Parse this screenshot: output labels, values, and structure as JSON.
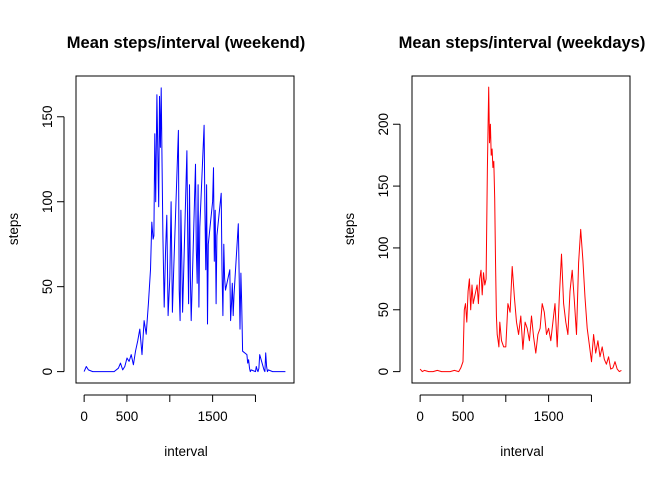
{
  "chart_data": [
    {
      "type": "line",
      "title": "Mean steps/interval (weekend)",
      "xlabel": "interval",
      "ylabel": "steps",
      "color": "#0000ff",
      "xlim": [
        -95,
        2450
      ],
      "ylim": [
        -6.7,
        174
      ],
      "x_ticks": [
        0,
        500,
        1000,
        1500,
        2000
      ],
      "x_tick_labels": [
        "0",
        "500",
        "",
        "1500",
        ""
      ],
      "y_ticks": [
        0,
        50,
        100,
        150
      ],
      "y_tick_labels": [
        "0",
        "50",
        "100",
        "150"
      ],
      "grid": false,
      "series": [
        {
          "x": [
            0,
            25,
            50,
            100,
            150,
            200,
            250,
            300,
            350,
            400,
            425,
            450,
            475,
            500,
            525,
            550,
            575,
            600,
            625,
            650,
            675,
            700,
            725,
            750,
            775,
            790,
            805,
            815,
            825,
            835,
            850,
            860,
            870,
            880,
            890,
            900,
            910,
            920,
            935,
            950,
            965,
            980,
            1000,
            1015,
            1030,
            1045,
            1100,
            1110,
            1120,
            1130,
            1140,
            1150,
            1200,
            1210,
            1220,
            1230,
            1240,
            1250,
            1300,
            1310,
            1320,
            1330,
            1340,
            1350,
            1400,
            1410,
            1420,
            1430,
            1440,
            1450,
            1500,
            1510,
            1520,
            1530,
            1540,
            1550,
            1600,
            1610,
            1620,
            1630,
            1640,
            1650,
            1700,
            1710,
            1720,
            1730,
            1740,
            1750,
            1800,
            1810,
            1820,
            1830,
            1840,
            1850,
            1900,
            1910,
            1920,
            1930,
            1940,
            1950,
            2000,
            2010,
            2020,
            2030,
            2040,
            2050,
            2100,
            2110,
            2120,
            2130,
            2140,
            2150,
            2200,
            2225,
            2250,
            2275,
            2300,
            2325,
            2350
          ],
          "y": [
            0,
            3,
            1,
            0,
            0,
            0,
            0,
            0,
            0,
            2,
            5,
            1,
            3,
            8,
            6,
            10,
            4,
            12,
            18,
            25,
            10,
            30,
            22,
            40,
            60,
            88,
            78,
            80,
            140,
            100,
            163,
            130,
            97,
            162,
            132,
            167,
            120,
            80,
            38,
            70,
            92,
            33,
            55,
            100,
            35,
            60,
            142,
            48,
            30,
            95,
            65,
            35,
            130,
            75,
            40,
            110,
            55,
            30,
            122,
            72,
            52,
            110,
            38,
            85,
            145,
            95,
            60,
            110,
            28,
            75,
            100,
            120,
            65,
            95,
            40,
            80,
            105,
            60,
            33,
            75,
            55,
            48,
            60,
            30,
            40,
            52,
            33,
            45,
            87,
            55,
            25,
            58,
            40,
            12,
            10,
            5,
            7,
            2,
            0,
            1,
            0,
            3,
            1,
            0,
            2,
            10,
            1,
            0,
            11,
            3,
            0,
            1,
            0,
            0,
            0,
            0,
            0,
            0,
            0
          ]
        }
      ]
    },
    {
      "type": "line",
      "title": "Mean steps/interval (weekdays)",
      "xlabel": "interval",
      "ylabel": "steps",
      "color": "#ff0000",
      "xlim": [
        -95,
        2450
      ],
      "ylim": [
        -9.2,
        239
      ],
      "x_ticks": [
        0,
        500,
        1000,
        1500,
        2000
      ],
      "x_tick_labels": [
        "0",
        "500",
        "",
        "1500",
        ""
      ],
      "y_ticks": [
        0,
        50,
        100,
        150,
        200
      ],
      "y_tick_labels": [
        "0",
        "50",
        "100",
        "150",
        "200"
      ],
      "grid": false,
      "series": [
        {
          "x": [
            0,
            25,
            50,
            100,
            150,
            200,
            250,
            300,
            350,
            400,
            450,
            475,
            500,
            515,
            530,
            545,
            560,
            575,
            590,
            605,
            620,
            635,
            650,
            665,
            680,
            695,
            710,
            725,
            740,
            755,
            770,
            785,
            800,
            810,
            820,
            830,
            840,
            850,
            860,
            870,
            880,
            890,
            900,
            910,
            920,
            930,
            950,
            975,
            1000,
            1025,
            1050,
            1075,
            1100,
            1125,
            1150,
            1175,
            1200,
            1225,
            1250,
            1275,
            1300,
            1325,
            1350,
            1375,
            1400,
            1425,
            1450,
            1475,
            1500,
            1525,
            1550,
            1575,
            1600,
            1625,
            1650,
            1675,
            1700,
            1725,
            1750,
            1775,
            1800,
            1825,
            1850,
            1875,
            1900,
            1925,
            1950,
            1975,
            2000,
            2025,
            2050,
            2075,
            2100,
            2125,
            2150,
            2175,
            2200,
            2225,
            2250,
            2275,
            2300,
            2325,
            2350
          ],
          "y": [
            2,
            0,
            1,
            0,
            0,
            1,
            0,
            0,
            0,
            1,
            0,
            3,
            8,
            50,
            55,
            40,
            65,
            75,
            50,
            70,
            55,
            60,
            65,
            70,
            55,
            75,
            82,
            62,
            80,
            70,
            75,
            165,
            230,
            185,
            200,
            175,
            180,
            165,
            170,
            140,
            90,
            45,
            30,
            25,
            20,
            40,
            25,
            20,
            20,
            55,
            48,
            85,
            60,
            40,
            30,
            45,
            18,
            40,
            35,
            25,
            45,
            28,
            15,
            30,
            35,
            55,
            48,
            30,
            35,
            25,
            40,
            55,
            20,
            60,
            95,
            55,
            40,
            30,
            65,
            82,
            58,
            30,
            88,
            115,
            90,
            60,
            35,
            22,
            8,
            30,
            15,
            25,
            12,
            20,
            10,
            6,
            12,
            2,
            3,
            8,
            2,
            0,
            1
          ]
        }
      ]
    }
  ]
}
